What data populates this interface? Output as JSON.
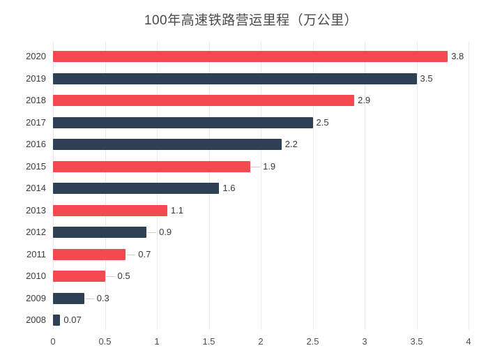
{
  "title": "100年高速铁路营运里程（万公里）",
  "colors": {
    "background": "#ffffff",
    "bar_red": "#f4494e",
    "bar_navy": "#2e4154",
    "gridline": "#e9e9e9",
    "leader_line": "#cccccc",
    "title_text": "#4a4a4a",
    "category_text": "#3d3d3d",
    "value_text": "#3a3a3a",
    "axis_text": "#4e4e4e"
  },
  "chart_data": {
    "type": "bar",
    "orientation": "horizontal",
    "title": "100年高速铁路营运里程（万公里）",
    "xlabel": "",
    "ylabel": "",
    "xlim": [
      0,
      4
    ],
    "x_tick_labels": [
      "0",
      "0.5",
      "1",
      "1.5",
      "2",
      "2.5",
      "3",
      "3.5",
      "4"
    ],
    "grid": true,
    "legend": false,
    "categories": [
      "2020",
      "2019",
      "2018",
      "2017",
      "2016",
      "2015",
      "2014",
      "2013",
      "2012",
      "2011",
      "2010",
      "2009",
      "2008"
    ],
    "values": [
      3.8,
      3.5,
      2.9,
      2.5,
      2.2,
      1.9,
      1.6,
      1.1,
      0.9,
      0.7,
      0.5,
      0.3,
      0.07
    ],
    "value_labels": [
      "3.8",
      "3.5",
      "2.9",
      "2.5",
      "2.2",
      "1.9",
      "1.6",
      "1.1",
      "0.9",
      "0.7",
      "0.5",
      "0.3",
      "0.07"
    ],
    "bar_colors": [
      "bar_red",
      "bar_navy",
      "bar_red",
      "bar_navy",
      "bar_navy",
      "bar_red",
      "bar_navy",
      "bar_red",
      "bar_navy",
      "bar_red",
      "bar_red",
      "bar_navy",
      "bar_navy"
    ],
    "leader_lines": [
      false,
      false,
      false,
      false,
      false,
      true,
      false,
      false,
      true,
      true,
      true,
      true,
      false
    ]
  }
}
